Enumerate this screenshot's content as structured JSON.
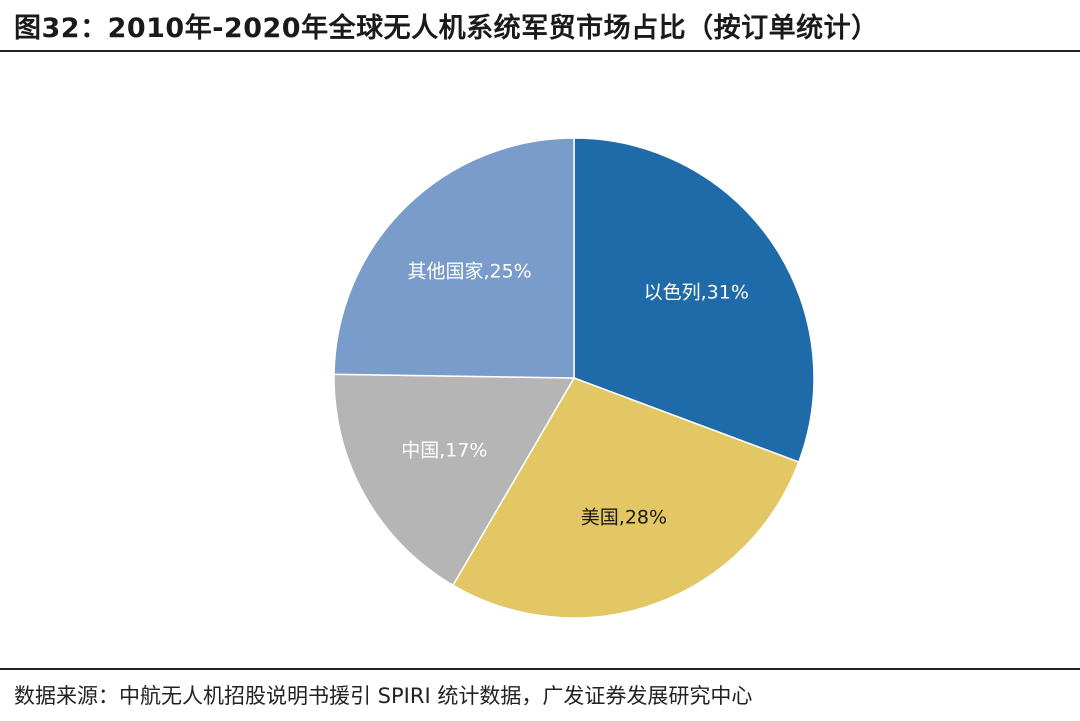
{
  "header": {
    "title": "图32：2010年-2020年全球无人机系统军贸市场占比（按订单统计）"
  },
  "footer": {
    "source": "数据来源：中航无人机招股说明书援引 SPIRI 统计数据，广发证券发展研究中心"
  },
  "chart_data": {
    "type": "pie",
    "title": "",
    "categories": [
      "以色列",
      "美国",
      "中国",
      "其他国家"
    ],
    "values": [
      31,
      28,
      17,
      25
    ],
    "unit": "%",
    "labels": [
      "以色列,31%",
      "美国,28%",
      "中国,17%",
      "其他国家,25%"
    ],
    "colors": [
      "#1f6aa8",
      "#e3c764",
      "#b5b5b5",
      "#7a9cca"
    ],
    "label_colors": [
      "#ffffff",
      "#1a1a1a",
      "#ffffff",
      "#ffffff"
    ],
    "start_angle_deg": 0,
    "direction": "clockwise",
    "legend": "none"
  }
}
